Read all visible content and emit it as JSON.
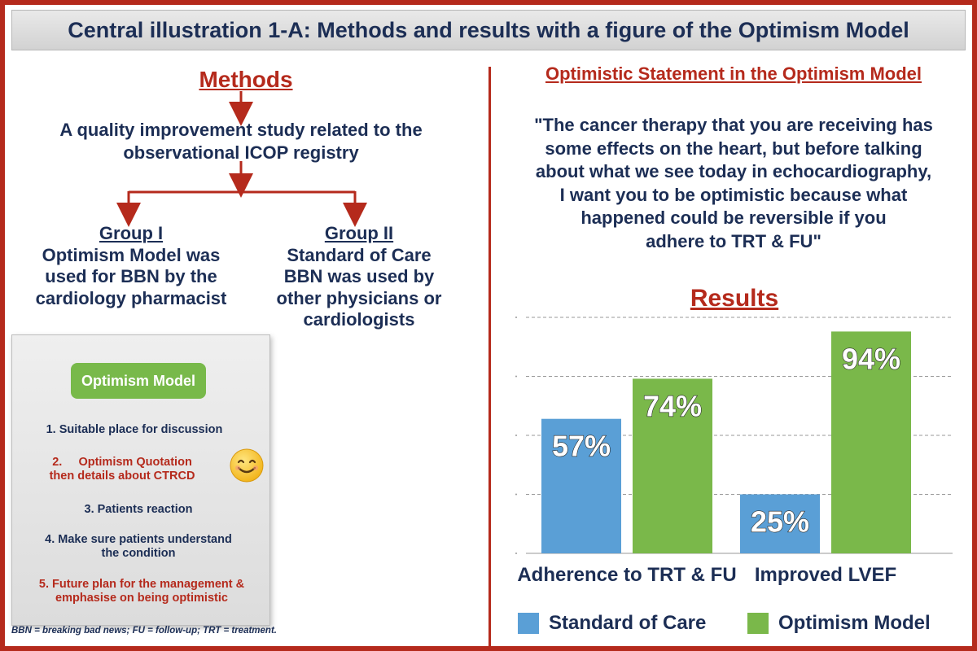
{
  "title": "Central illustration 1-A: Methods and results with a figure of the Optimism Model",
  "methods": {
    "heading": "Methods",
    "study_line1": "A quality improvement study related to the",
    "study_line2": "observational ICOP registry",
    "group1": {
      "title": "Group I",
      "line1": "Optimism Model was",
      "line2": "used for BBN by the",
      "line3": "cardiology pharmacist"
    },
    "group2": {
      "title": "Group II",
      "line1": "Standard of Care",
      "line2": "BBN was used by",
      "line3": "other physicians or",
      "line4": "cardiologists"
    }
  },
  "optimism_model": {
    "badge": "Optimism Model",
    "step1": "1. Suitable place for discussion",
    "step2_line1": "2.     Optimism Quotation",
    "step2_line2": "then details about CTRCD",
    "step3": "3. Patients reaction",
    "step4_line1": "4. Make sure patients understand",
    "step4_line2": "the condition",
    "step5_line1": "5. Future plan for the management &",
    "step5_line2": "emphasise on being optimistic"
  },
  "footnote": "BBN = breaking bad news; FU = follow-up; TRT = treatment.",
  "statement": {
    "heading": "Optimistic Statement in the Optimism Model",
    "line1": "\"The cancer therapy that you are receiving has",
    "line2": "some effects on the heart, but before talking",
    "line3": "about what we see today in echocardiography,",
    "line4": "I want you to be optimistic because what",
    "line5": "happened could be reversible if you",
    "line6": "adhere to TRT & FU\""
  },
  "results_heading": "Results",
  "colors": {
    "brand_red": "#b52a1c",
    "navy": "#1c2e55",
    "standard_blue": "#5a9fd6",
    "optimism_green": "#7ab84a"
  },
  "chart_data": {
    "type": "bar",
    "title": "Results",
    "categories": [
      "Adherence to TRT & FU",
      "Improved LVEF"
    ],
    "series": [
      {
        "name": "Standard of Care",
        "values": [
          57,
          25
        ],
        "labels": [
          "57%",
          "25%"
        ]
      },
      {
        "name": "Optimism Model",
        "values": [
          74,
          94
        ],
        "labels": [
          "74%",
          "94%"
        ]
      }
    ],
    "ylim": [
      0,
      100
    ],
    "grid": true,
    "legend": "bottom"
  }
}
